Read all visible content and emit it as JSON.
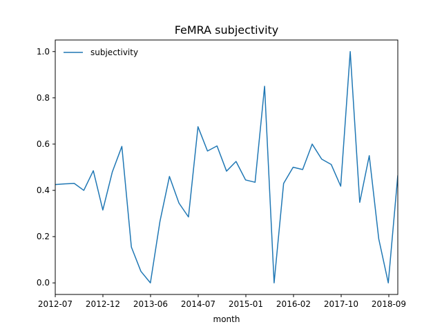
{
  "chart_data": {
    "type": "line",
    "title": "FeMRA subjectivity",
    "xlabel": "month",
    "ylabel": "",
    "ylim": [
      -0.05,
      1.05
    ],
    "yticks": [
      0.0,
      0.2,
      0.4,
      0.6,
      0.8,
      1.0
    ],
    "ytick_labels": [
      "0.0",
      "0.2",
      "0.4",
      "0.6",
      "0.8",
      "1.0"
    ],
    "xticks": [
      "2012-07",
      "2012-12",
      "2013-06",
      "2014-07",
      "2015-01",
      "2016-02",
      "2017-10",
      "2018-09"
    ],
    "xtick_labels": [
      "2012-07",
      "2012-12",
      "2013-06",
      "2014-07",
      "2015-01",
      "2016-02",
      "2017-10",
      "2018-09"
    ],
    "grid": false,
    "legend_position": "top-left",
    "color": "#1f77b4",
    "series": [
      {
        "name": "subjectivity",
        "values": [
          0.425,
          0.428,
          0.43,
          0.4,
          0.485,
          0.315,
          0.48,
          0.59,
          0.155,
          0.05,
          0.0,
          0.265,
          0.46,
          0.345,
          0.285,
          0.675,
          0.57,
          0.592,
          0.483,
          0.525,
          0.445,
          0.435,
          0.85,
          0.0,
          0.43,
          0.5,
          0.49,
          0.6,
          0.535,
          0.512,
          0.418,
          1.0,
          0.348,
          0.55,
          0.19,
          0.0,
          0.465
        ]
      }
    ]
  }
}
